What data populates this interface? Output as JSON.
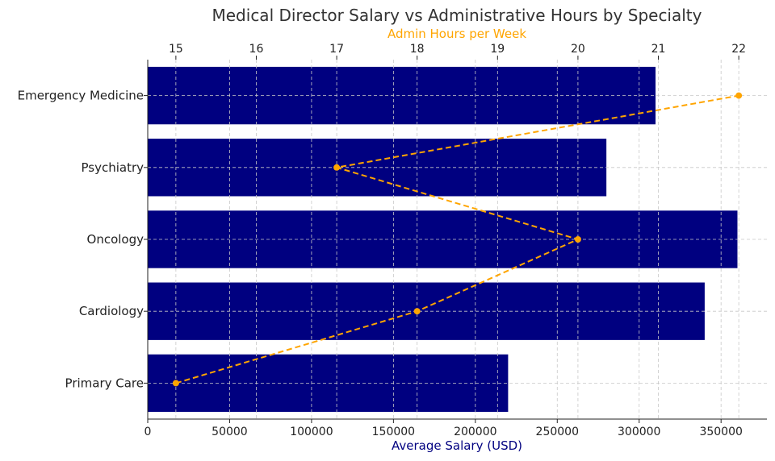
{
  "chart_data": {
    "type": "bar",
    "orientation": "horizontal",
    "title": "Medical Director Salary vs Administrative Hours by Specialty",
    "categories": [
      "Primary Care",
      "Cardiology",
      "Oncology",
      "Psychiatry",
      "Emergency Medicine"
    ],
    "salary": {
      "axis_label": "Average Salary (USD)",
      "values": [
        220000,
        340000,
        360000,
        280000,
        310000
      ],
      "xlim": [
        0,
        378000
      ],
      "ticks": [
        0,
        50000,
        100000,
        150000,
        200000,
        250000,
        300000,
        350000
      ],
      "color": "#000080"
    },
    "admin_hours": {
      "axis_label": "Admin Hours per Week",
      "values": [
        15,
        18,
        20,
        17,
        22
      ],
      "xlim": [
        14.65,
        22.35
      ],
      "ticks": [
        15,
        16,
        17,
        18,
        19,
        20,
        21,
        22
      ],
      "color": "#FFA500",
      "line_style": "dashed",
      "marker": "circle"
    },
    "grid": true
  }
}
